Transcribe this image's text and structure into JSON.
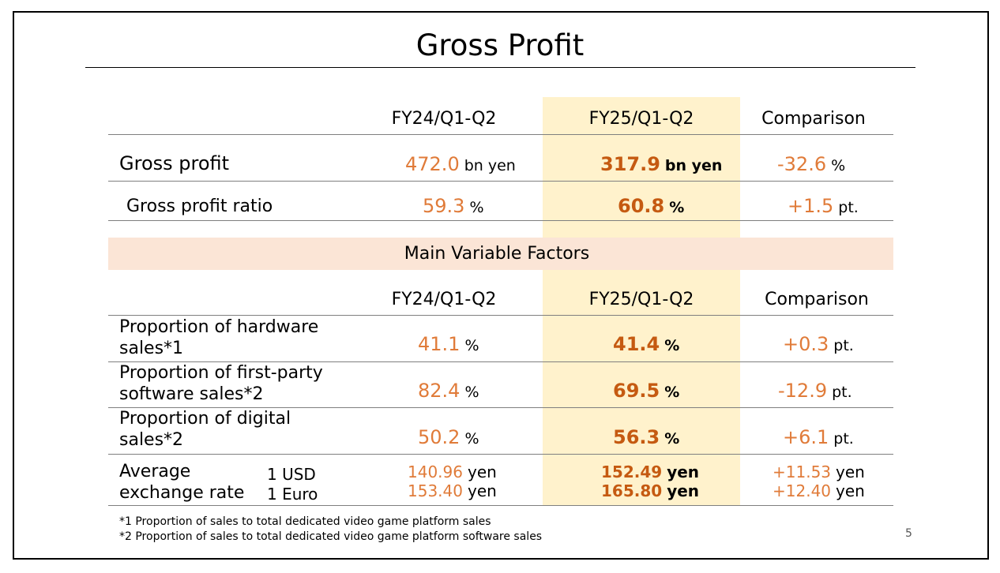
{
  "title": "Gross Profit",
  "columns": {
    "fy24": "FY24/Q1-Q2",
    "fy25": "FY25/Q1-Q2",
    "comparison": "Comparison"
  },
  "rows": {
    "gross_profit": {
      "label": "Gross profit",
      "fy24_value": "472.0",
      "fy24_unit": "bn yen",
      "fy25_value": "317.9",
      "fy25_unit": "bn yen",
      "cmp_value": "-32.6",
      "cmp_unit": "%"
    },
    "gross_profit_ratio": {
      "label": "Gross profit ratio",
      "fy24_value": "59.3",
      "fy24_unit": "%",
      "fy25_value": "60.8",
      "fy25_unit": "%",
      "cmp_value": "+1.5",
      "cmp_unit": "pt."
    }
  },
  "factors": {
    "band_label": "Main Variable Factors",
    "columns": {
      "fy24": "FY24/Q1-Q2",
      "fy25": "FY25/Q1-Q2",
      "comparison": "Comparison"
    },
    "hardware": {
      "label_line1": "Proportion of hardware",
      "label_line2": "sales*1",
      "fy24_value": "41.1",
      "fy24_unit": "%",
      "fy25_value": "41.4",
      "fy25_unit": "%",
      "cmp_value": "+0.3",
      "cmp_unit": "pt."
    },
    "first_party": {
      "label_line1": "Proportion of first-party",
      "label_line2": "software sales*2",
      "fy24_value": "82.4",
      "fy24_unit": "%",
      "fy25_value": "69.5",
      "fy25_unit": "%",
      "cmp_value": "-12.9",
      "cmp_unit": "pt."
    },
    "digital": {
      "label_line1": "Proportion of digital",
      "label_line2": "sales*2",
      "fy24_value": "50.2",
      "fy24_unit": "%",
      "fy25_value": "56.3",
      "fy25_unit": "%",
      "cmp_value": "+6.1",
      "cmp_unit": "pt."
    },
    "fx": {
      "label_line1": "Average",
      "label_line2": "exchange rate",
      "usd_label": "1 USD",
      "euro_label": "1 Euro",
      "unit": "yen",
      "fy24_usd": "140.96",
      "fy24_euro": "153.40",
      "fy25_usd": "152.49",
      "fy25_euro": "165.80",
      "cmp_usd": "+11.53",
      "cmp_euro": "+12.40"
    }
  },
  "notes": {
    "note1": "*1 Proportion of sales to total dedicated video game platform sales",
    "note2": "*2 Proportion of sales to total dedicated video game platform software sales"
  },
  "page_number": "5",
  "colors": {
    "value": "#e07b39",
    "value_bold": "#c55a11",
    "highlight": "#fff2cc",
    "band": "#fbe5d6"
  }
}
